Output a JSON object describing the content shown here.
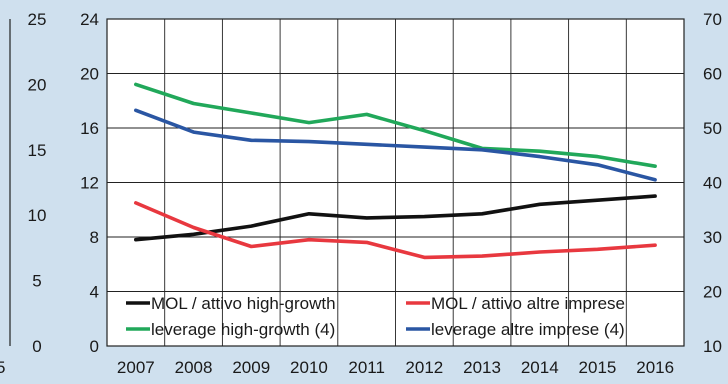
{
  "colors": {
    "background": "#cfe0ee",
    "plot_background": "#ffffff",
    "grid": "#222222",
    "mol_high_growth": "#111111",
    "mol_altre": "#e8383f",
    "leverage_high_growth": "#21a85a",
    "leverage_altre": "#2a56a3"
  },
  "chart_data": {
    "type": "line",
    "categories": [
      "2007",
      "2008",
      "2009",
      "2010",
      "2011",
      "2012",
      "2013",
      "2014",
      "2015",
      "2016"
    ],
    "axes": {
      "left_inner": {
        "ticks": [
          "0",
          "4",
          "8",
          "12",
          "16",
          "20",
          "24"
        ],
        "ylim": [
          0,
          24
        ]
      },
      "left_outer": {
        "ticks": [
          "0",
          "5",
          "10",
          "15",
          "20",
          "25"
        ],
        "ylim": [
          0,
          25
        ]
      },
      "right": {
        "ticks": [
          "10",
          "20",
          "30",
          "40",
          "50",
          "60",
          "70"
        ],
        "ylim": [
          10,
          70
        ]
      }
    },
    "series": [
      {
        "name": "MOL / attivo high-growth",
        "axis": "left_inner",
        "color_key": "mol_high_growth",
        "values": [
          7.8,
          8.2,
          8.8,
          9.7,
          9.4,
          9.5,
          9.7,
          10.4,
          10.7,
          11.0
        ]
      },
      {
        "name": "MOL / attivo altre imprese",
        "axis": "left_inner",
        "color_key": "mol_altre",
        "values": [
          10.5,
          8.7,
          7.3,
          7.8,
          7.6,
          6.5,
          6.6,
          6.9,
          7.1,
          7.4
        ]
      },
      {
        "name": "leverage high-growth (4)",
        "axis": "left_inner",
        "color_key": "leverage_high_growth",
        "values": [
          19.2,
          17.8,
          17.1,
          16.4,
          17.0,
          15.8,
          14.5,
          14.3,
          13.9,
          13.2
        ]
      },
      {
        "name": "leverage altre imprese (4)",
        "axis": "left_inner",
        "color_key": "leverage_altre",
        "values": [
          17.3,
          15.7,
          15.1,
          15.0,
          14.8,
          14.6,
          14.4,
          13.9,
          13.3,
          12.2
        ]
      }
    ],
    "grid": true,
    "legend": "bottom-inside"
  },
  "edge_glyph": "5"
}
